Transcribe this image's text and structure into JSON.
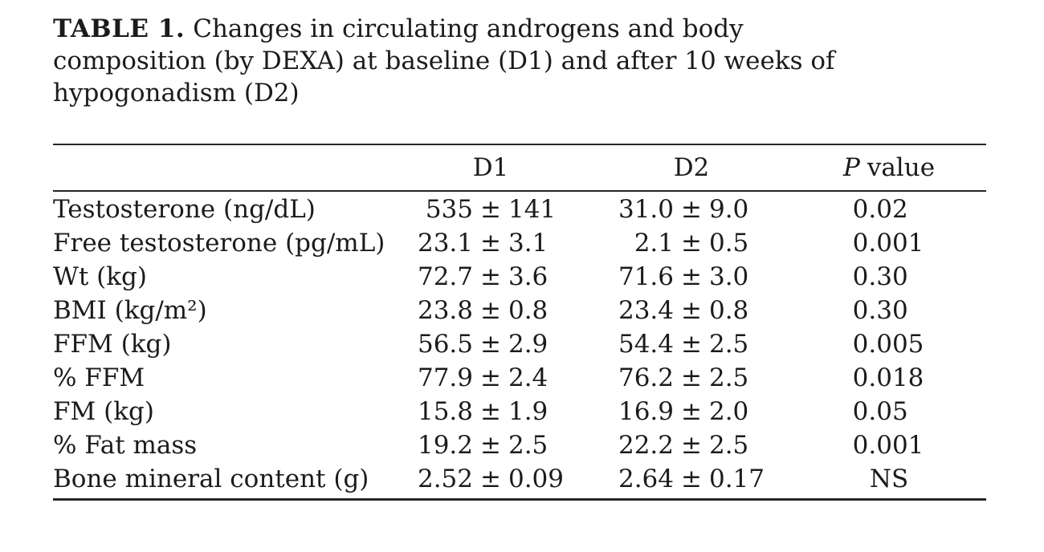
{
  "symbols": {
    "plus_minus": "±"
  },
  "caption": {
    "label": "TABLE 1.",
    "line1": "Changes in circulating androgens and body",
    "line2": "composition (by DEXA) at baseline (D1) and after 10 weeks of",
    "line3": "hypogonadism (D2)"
  },
  "header": {
    "d1": "D1",
    "d2": "D2",
    "p_symbol": "P",
    "p_word": "value"
  },
  "rows": [
    {
      "label": "Testosterone (ng/dL)",
      "d1": {
        "mean": "535",
        "sd": "141"
      },
      "d2": {
        "mean": "31.0",
        "sd": "9.0"
      },
      "p": "0.02"
    },
    {
      "label": "Free testosterone (pg/mL)",
      "d1": {
        "mean": "23.1",
        "sd": "3.1"
      },
      "d2": {
        "mean": "2.1",
        "sd": "0.5"
      },
      "p": "0.001"
    },
    {
      "label": "Wt (kg)",
      "d1": {
        "mean": "72.7",
        "sd": "3.6"
      },
      "d2": {
        "mean": "71.6",
        "sd": "3.0"
      },
      "p": "0.30"
    },
    {
      "label": "BMI (kg/m²)",
      "d1": {
        "mean": "23.8",
        "sd": "0.8"
      },
      "d2": {
        "mean": "23.4",
        "sd": "0.8"
      },
      "p": "0.30"
    },
    {
      "label": "FFM (kg)",
      "d1": {
        "mean": "56.5",
        "sd": "2.9"
      },
      "d2": {
        "mean": "54.4",
        "sd": "2.5"
      },
      "p": "0.005"
    },
    {
      "label": "% FFM",
      "d1": {
        "mean": "77.9",
        "sd": "2.4"
      },
      "d2": {
        "mean": "76.2",
        "sd": "2.5"
      },
      "p": "0.018"
    },
    {
      "label": "FM (kg)",
      "d1": {
        "mean": "15.8",
        "sd": "1.9"
      },
      "d2": {
        "mean": "16.9",
        "sd": "2.0"
      },
      "p": "0.05"
    },
    {
      "label": "% Fat mass",
      "d1": {
        "mean": "19.2",
        "sd": "2.5"
      },
      "d2": {
        "mean": "22.2",
        "sd": "2.5"
      },
      "p": "0.001"
    },
    {
      "label": "Bone mineral content (g)",
      "d1": {
        "mean": "2.52",
        "sd": "0.09"
      },
      "d2": {
        "mean": "2.64",
        "sd": "0.17"
      },
      "p": "NS"
    }
  ]
}
